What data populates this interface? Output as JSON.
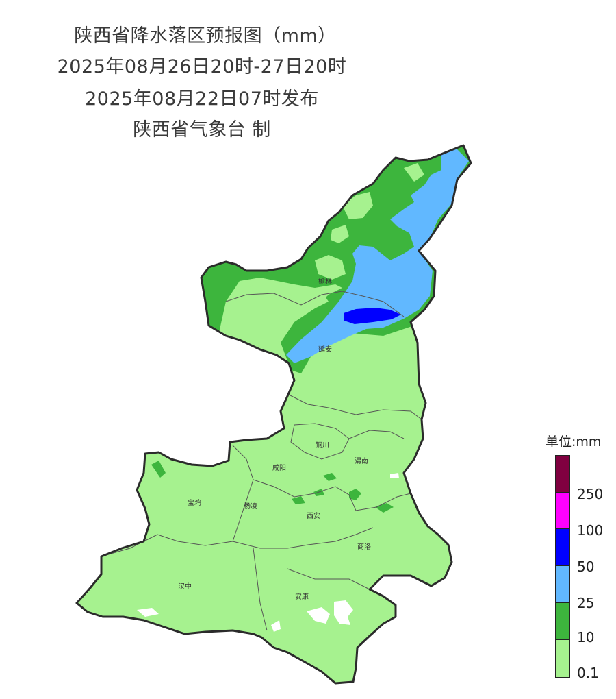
{
  "titles": {
    "line1": "陕西省降水落区预报图（mm）",
    "line2": "2025年08月26日20时-27日20时",
    "line3": "2025年08月22日07时发布",
    "line4": "陕西省气象台 制"
  },
  "legend": {
    "unit_label": "单位:mm",
    "ticks": [
      "250",
      "100",
      "50",
      "25",
      "10",
      "0.1"
    ],
    "bands": [
      {
        "label": "250+",
        "color": "#800040"
      },
      {
        "label": "100-250",
        "color": "#ff00ff"
      },
      {
        "label": "50-100",
        "color": "#0000ff"
      },
      {
        "label": "25-50",
        "color": "#61b8ff"
      },
      {
        "label": "10-25",
        "color": "#3db53d"
      },
      {
        "label": "0.1-10",
        "color": "#a6f28f"
      }
    ]
  },
  "cities": {
    "yulin": "榆林",
    "yanan": "延安",
    "tongchuan": "铜川",
    "weinan": "渭南",
    "xianyang": "咸阳",
    "baoji": "宝鸡",
    "yangling": "杨凌",
    "xian": "西安",
    "shangluo": "商洛",
    "hanzhong": "汉中",
    "ankang": "安康"
  }
}
